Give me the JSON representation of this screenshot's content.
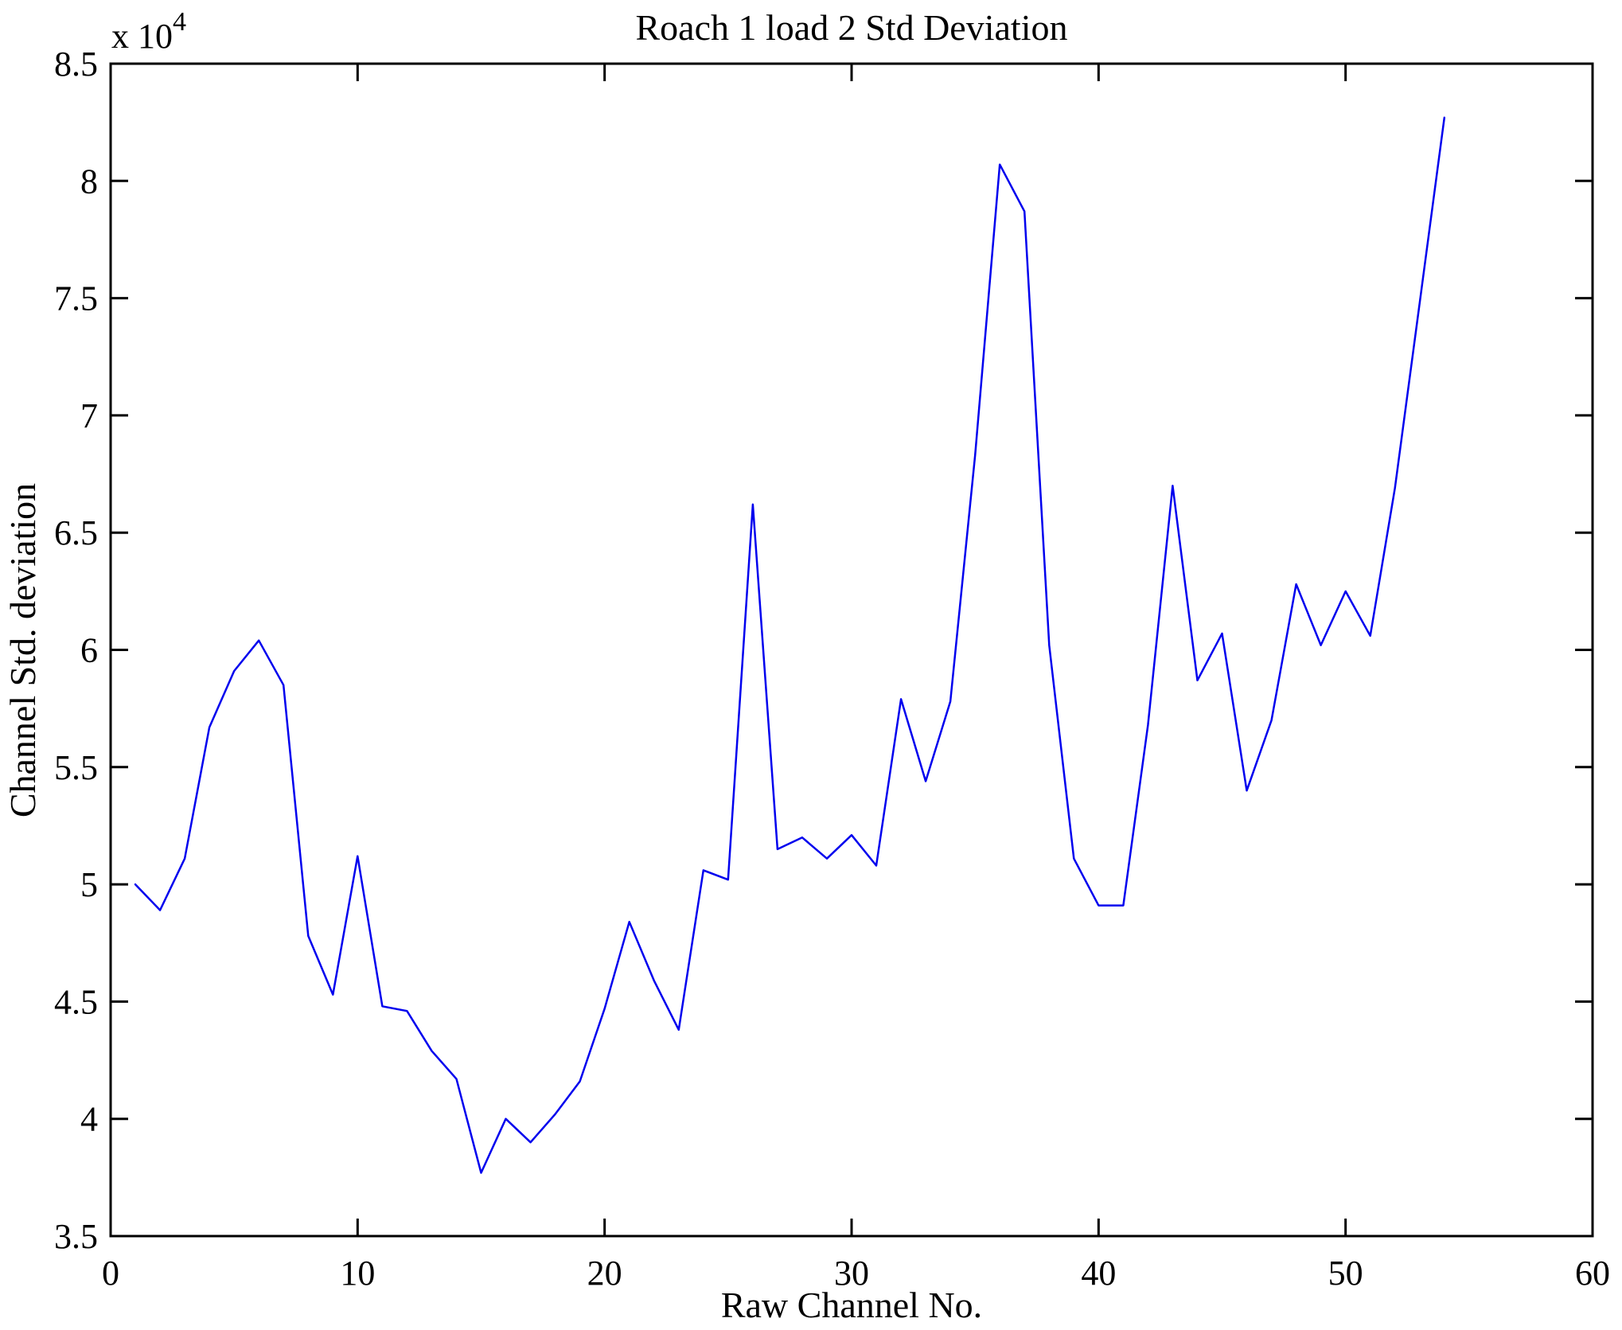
{
  "figure": {
    "title": "Roach 1 load 2 Std Deviation",
    "xlabel": "Raw Channel No.",
    "ylabel": "Channel Std. deviation",
    "exponent_label": {
      "base": "x 10",
      "power": "4"
    },
    "colors": {
      "line": "#0000EE",
      "axis": "#000000",
      "background": "#FFFFFF"
    }
  },
  "chart_data": {
    "type": "line",
    "title": "Roach 1 load 2 Std Deviation",
    "xlabel": "Raw Channel No.",
    "ylabel": "Channel Std. deviation",
    "y_unit_note": "values are in units of 10^4 (axis exponent label x 10^4)",
    "value_scale": 10000,
    "xlim": [
      0,
      60
    ],
    "ylim": [
      3.5,
      8.5
    ],
    "xticks": [
      0,
      10,
      20,
      30,
      40,
      50,
      60
    ],
    "yticks": [
      3.5,
      4,
      4.5,
      5,
      5.5,
      6,
      6.5,
      7,
      7.5,
      8,
      8.5
    ],
    "grid": false,
    "legend": null,
    "x": [
      1,
      2,
      3,
      4,
      5,
      6,
      7,
      8,
      9,
      10,
      11,
      12,
      13,
      14,
      15,
      16,
      17,
      18,
      19,
      20,
      21,
      22,
      23,
      24,
      25,
      26,
      27,
      28,
      29,
      30,
      31,
      32,
      33,
      34,
      35,
      36,
      37,
      38,
      39,
      40,
      41,
      42,
      43,
      44,
      45,
      46,
      47,
      48,
      49,
      50,
      51,
      52,
      53,
      54
    ],
    "values": [
      5.0,
      4.89,
      5.11,
      5.67,
      5.91,
      6.04,
      5.85,
      4.78,
      4.53,
      5.12,
      4.48,
      4.46,
      4.29,
      4.17,
      3.77,
      4.0,
      3.9,
      4.02,
      4.16,
      4.47,
      4.84,
      4.59,
      4.38,
      5.06,
      5.02,
      6.62,
      5.15,
      5.2,
      5.11,
      5.21,
      5.08,
      5.79,
      5.44,
      5.78,
      6.83,
      8.07,
      7.87,
      6.02,
      5.11,
      4.91,
      4.91,
      5.68,
      6.7,
      5.87,
      6.07,
      5.4,
      5.7,
      6.28,
      6.02,
      6.25,
      6.06,
      6.69,
      7.48,
      8.27
    ]
  }
}
